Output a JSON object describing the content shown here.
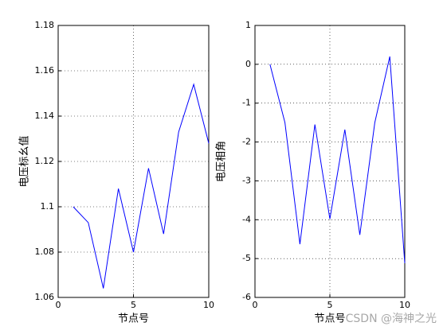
{
  "chart_data": [
    {
      "type": "line",
      "xlabel": "节点号",
      "ylabel": "电压标幺值",
      "x": [
        1,
        2,
        3,
        4,
        5,
        6,
        7,
        8,
        9,
        10
      ],
      "series": [
        {
          "color": "#0000ff",
          "values": [
            1.1,
            1.093,
            1.064,
            1.108,
            1.08,
            1.117,
            1.088,
            1.133,
            1.154,
            1.128
          ]
        }
      ],
      "xlim": [
        0,
        10
      ],
      "xticks": [
        0,
        5,
        10
      ],
      "ylim": [
        1.06,
        1.18
      ],
      "yticks": [
        1.06,
        1.08,
        1.1,
        1.12,
        1.14,
        1.16,
        1.18
      ],
      "grid": true
    },
    {
      "type": "line",
      "xlabel": "节点号",
      "ylabel": "电压相角",
      "x": [
        1,
        2,
        3,
        4,
        5,
        6,
        7,
        8,
        9,
        10
      ],
      "series": [
        {
          "color": "#0000ff",
          "values": [
            0,
            -1.5,
            -4.63,
            -1.55,
            -3.98,
            -1.68,
            -4.39,
            -1.5,
            0.2,
            -5.12
          ]
        }
      ],
      "xlim": [
        0,
        10
      ],
      "xticks": [
        0,
        5,
        10
      ],
      "ylim": [
        -6,
        1
      ],
      "yticks": [
        -6,
        -5,
        -4,
        -3,
        -2,
        -1,
        0,
        1
      ],
      "grid": true
    }
  ],
  "watermark": "CSDN @海神之光"
}
